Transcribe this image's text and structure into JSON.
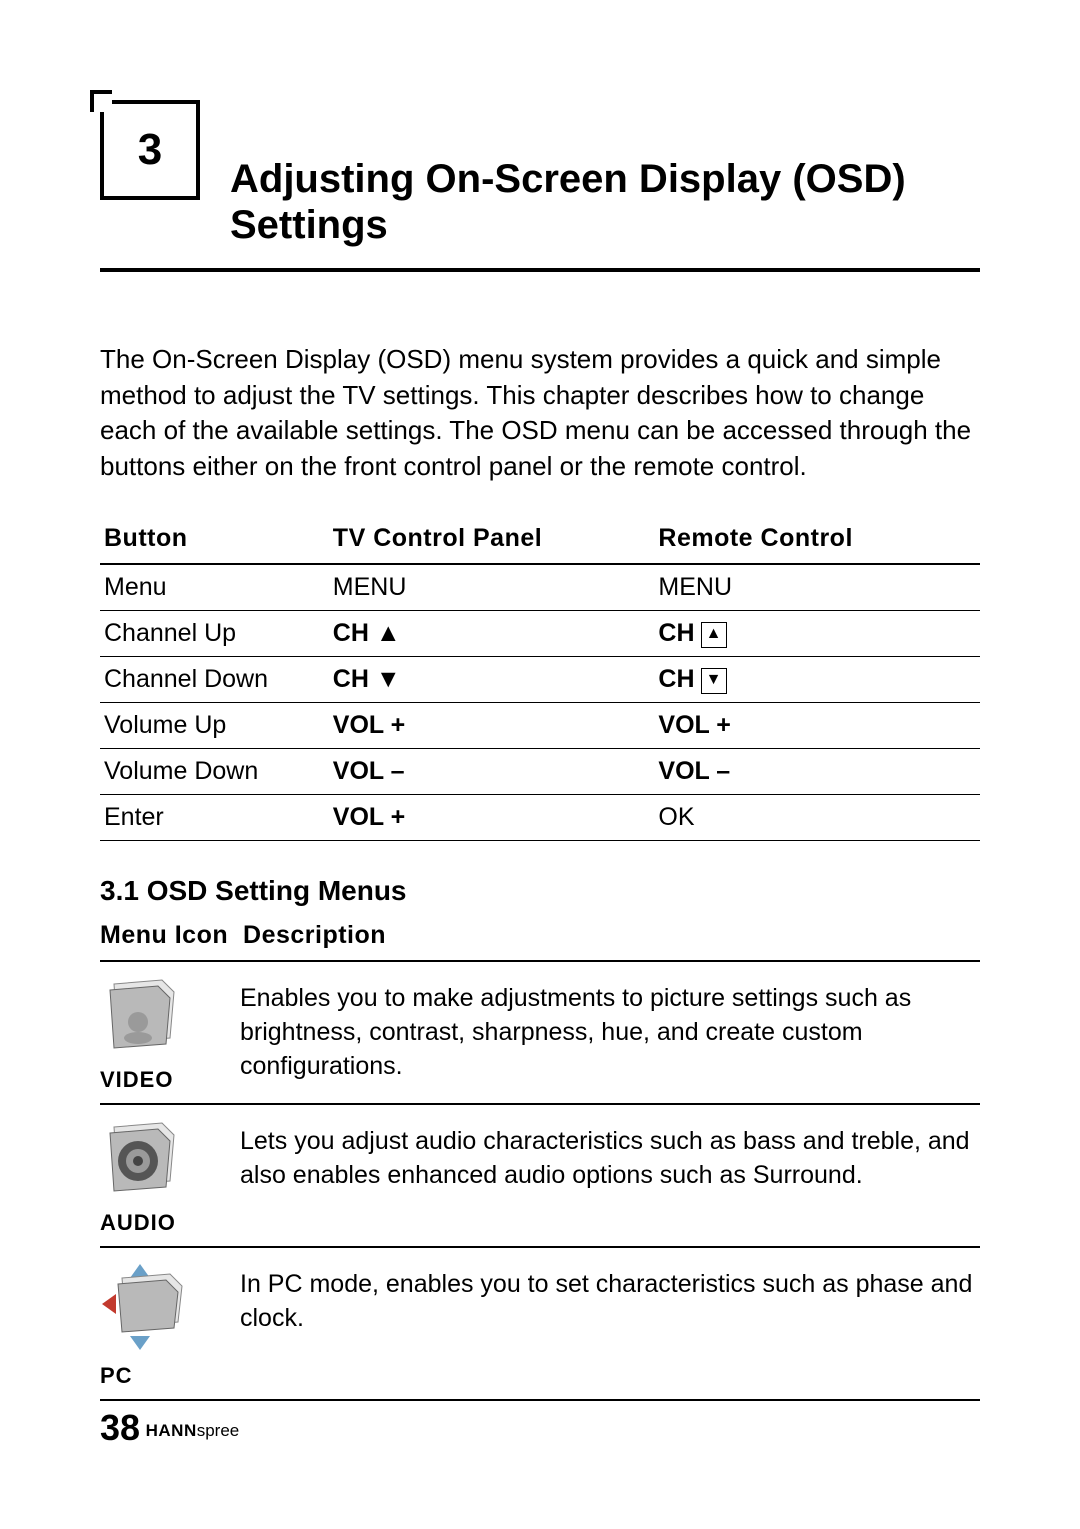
{
  "chapter": {
    "number": "3",
    "title": "Adjusting On-Screen Display (OSD) Settings"
  },
  "intro": "The On-Screen Display (OSD) menu system provides a quick and simple method to adjust the TV settings. This chapter describes how to change each of the available settings. The OSD menu can be accessed through the buttons either on the front control panel or the remote control.",
  "button_table": {
    "headers": [
      "Button",
      "TV Control Panel",
      "Remote Control"
    ],
    "rows": [
      {
        "button": "Menu",
        "panel": "MENU",
        "panel_bold": false,
        "remote_prefix": "MENU",
        "remote_bold": false,
        "remote_icon": null
      },
      {
        "button": "Channel Up",
        "panel": "CH ▲",
        "panel_bold": true,
        "remote_prefix": "CH",
        "remote_bold": true,
        "remote_icon": "▲"
      },
      {
        "button": "Channel Down",
        "panel": "CH ▼",
        "panel_bold": true,
        "remote_prefix": "CH",
        "remote_bold": true,
        "remote_icon": "▼"
      },
      {
        "button": "Volume Up",
        "panel": "VOL +",
        "panel_bold": true,
        "remote_prefix": "VOL +",
        "remote_bold": true,
        "remote_icon": null
      },
      {
        "button": "Volume Down",
        "panel": "VOL –",
        "panel_bold": true,
        "remote_prefix": "VOL –",
        "remote_bold": true,
        "remote_icon": null
      },
      {
        "button": "Enter",
        "panel": "VOL +",
        "panel_bold": true,
        "remote_prefix": "OK",
        "remote_bold": false,
        "remote_icon": null
      }
    ]
  },
  "section": {
    "heading": "3.1  OSD Setting Menus",
    "table_header_icon": "Menu Icon",
    "table_header_desc": "Description",
    "rows": [
      {
        "label": "VIDEO",
        "icon": "video",
        "desc": "Enables you to make adjustments to picture settings such as brightness, contrast, sharpness, hue, and create custom configurations."
      },
      {
        "label": "AUDIO",
        "icon": "audio",
        "desc": "Lets you adjust audio characteristics such as bass and treble, and also enables enhanced audio options such as Surround."
      },
      {
        "label": "PC",
        "icon": "pc",
        "desc": "In PC mode, enables you to set characteristics such as phase and clock."
      }
    ]
  },
  "footer": {
    "page": "38",
    "brand_bold": "HANN",
    "brand_light": "spree"
  },
  "colors": {
    "text": "#000000",
    "bg": "#ffffff",
    "icon_fill": "#b9b9b9",
    "icon_shadow": "#9a9a9a",
    "icon_light": "#e6e6e6",
    "accent_red": "#c23a2e",
    "accent_blue": "#6aa0c8"
  }
}
